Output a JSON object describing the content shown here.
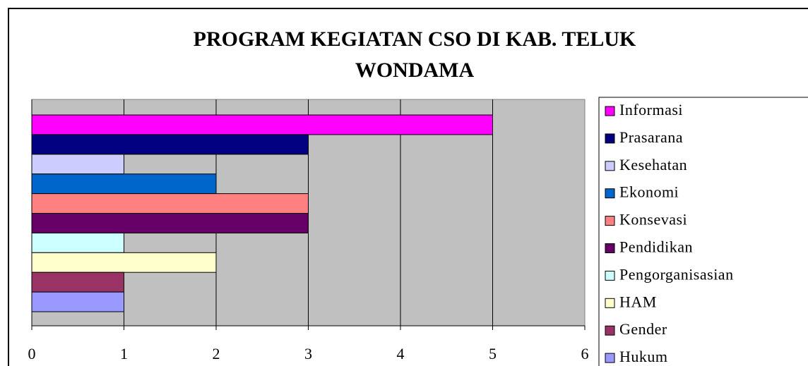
{
  "chart_data": {
    "type": "bar",
    "orientation": "horizontal",
    "title": "PROGRAM KEGIATAN CSO DI KAB. TELUK WONDAMA",
    "categories": [
      null
    ],
    "series": [
      {
        "name": "Informasi",
        "color": "#ff00ff",
        "values": [
          5
        ]
      },
      {
        "name": "Prasarana",
        "color": "#000080",
        "values": [
          3
        ]
      },
      {
        "name": "Kesehatan",
        "color": "#ccccff",
        "values": [
          1
        ]
      },
      {
        "name": "Ekonomi",
        "color": "#0066cc",
        "values": [
          2
        ]
      },
      {
        "name": "Konsevasi",
        "color": "#ff8080",
        "values": [
          3
        ]
      },
      {
        "name": "Pendidikan",
        "color": "#660066",
        "values": [
          3
        ]
      },
      {
        "name": "Pengorganisasian",
        "color": "#ccffff",
        "values": [
          1
        ]
      },
      {
        "name": "HAM",
        "color": "#ffffcc",
        "values": [
          2
        ]
      },
      {
        "name": "Gender",
        "color": "#993366",
        "values": [
          1
        ]
      },
      {
        "name": "Hukum",
        "color": "#9999ff",
        "values": [
          1
        ]
      }
    ],
    "xlim": [
      0,
      6
    ],
    "xticks": [
      0,
      1,
      2,
      3,
      4,
      5,
      6
    ],
    "grid": true,
    "legend": "right"
  }
}
